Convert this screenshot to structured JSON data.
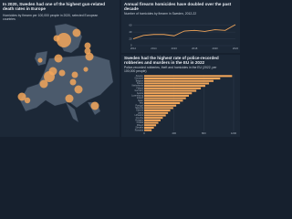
{
  "chart_data": [
    {
      "type": "bubble-map",
      "title": "In 2020, Sweden had one of the highest gun-related death rates in Europe",
      "subtitle": "Homicides by firearm per 100,000 people in 2020, selected European countries",
      "color": "#f2a65a",
      "values": [
        0.4,
        0.1,
        0.05,
        0.1,
        0.05,
        0.1,
        0.2,
        0.1,
        0.02,
        0.04,
        0.1,
        0.05,
        0.05,
        0.02,
        0.05,
        0.1,
        0.05,
        0.1,
        0.1,
        0.1
      ]
    },
    {
      "type": "line",
      "title": "Annual firearm homicides have doubled over the past decade",
      "subtitle": "Number of homicides by firearm in Sweden, 2012-22",
      "color": "#f2a65a",
      "x": [
        2012,
        2013,
        2014,
        2015,
        2016,
        2017,
        2018,
        2019,
        2020,
        2021,
        2022
      ],
      "values": [
        20,
        30,
        33,
        33,
        29,
        43,
        45,
        42,
        47,
        45,
        62
      ],
      "xlim": [
        2012,
        2022
      ],
      "xticks": [
        2012,
        2014,
        2016,
        2018,
        2020,
        2022
      ],
      "ylim": [
        0,
        70
      ],
      "yticks": [
        0,
        20,
        40,
        60
      ],
      "grid": true
    },
    {
      "type": "hbar",
      "title": "Sweden had the highest rate of police-recorded robberies and murders in the EU in 2022",
      "subtitle": "Police-recorded robberies, theft and homicides in the EU (2022, per 100,000 people)",
      "color": "#f2a65a",
      "categories": [
        "Sweden",
        "Denmark",
        "Belgium",
        "France",
        "Netherlands",
        "Finland",
        "Germany",
        "Austria",
        "Luxembourg",
        "Ireland",
        "Spain",
        "Italy",
        "Portugal",
        "Slovenia",
        "Estonia",
        "Latvia",
        "Lithuania",
        "Czechia",
        "Hungary",
        "Croatia",
        "Poland",
        "Slovakia",
        "Romania"
      ],
      "values": [
        1180,
        1020,
        930,
        870,
        820,
        760,
        700,
        640,
        600,
        560,
        520,
        480,
        430,
        390,
        350,
        320,
        290,
        250,
        220,
        190,
        160,
        130,
        100
      ],
      "xlim": [
        0,
        1200
      ],
      "xticks": [
        0,
        400,
        800,
        1200
      ],
      "grid": true
    }
  ]
}
